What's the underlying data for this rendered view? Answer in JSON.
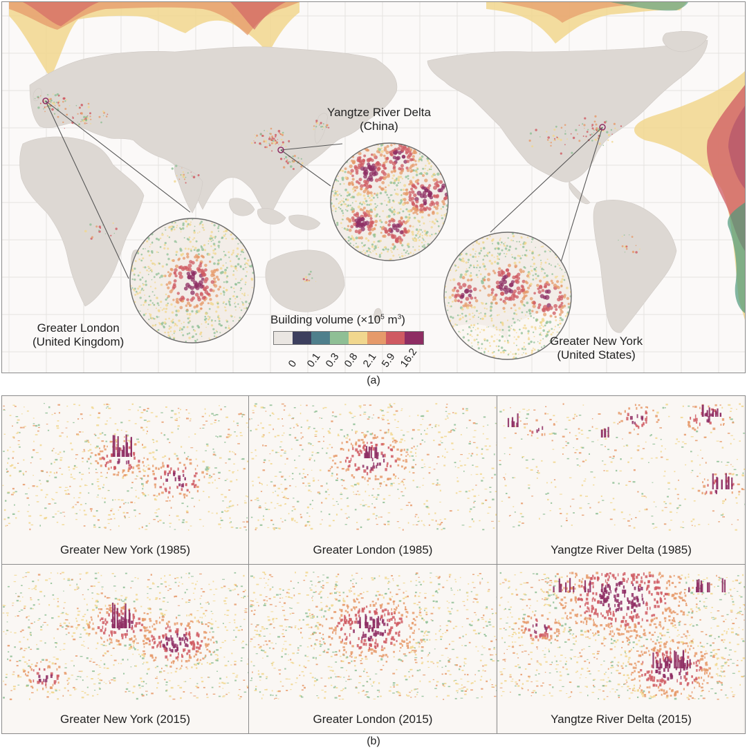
{
  "panel_a": {
    "caption": "(a)",
    "regions": [
      {
        "name": "Yangtze River Delta",
        "country": "(China)"
      },
      {
        "name": "Greater London",
        "country": "(United Kingdom)"
      },
      {
        "name": "Greater New York",
        "country": "(United States)"
      }
    ],
    "legend": {
      "title": "Building volume (×10",
      "title_exp": "5",
      "title_unit": " m",
      "title_unit_exp": "3",
      "title_close": ")",
      "ticks": [
        "0",
        "0.1",
        "0.3",
        "0.8",
        "2.1",
        "5.9",
        "16.2"
      ],
      "colors": [
        "#eae6e2",
        "#3d3f5e",
        "#4f7f8c",
        "#8fbf95",
        "#f1d78e",
        "#e69a6a",
        "#cf5a62",
        "#8e2d63"
      ]
    }
  },
  "panel_b": {
    "caption": "(b)",
    "tiles": [
      {
        "label": "Greater New York (1985)"
      },
      {
        "label": "Greater London (1985)"
      },
      {
        "label": "Yangtze River Delta (1985)"
      },
      {
        "label": "Greater New York (2015)"
      },
      {
        "label": "Greater London (2015)"
      },
      {
        "label": "Yangtze River Delta (2015)"
      }
    ]
  },
  "colors": {
    "land": "#ddd8d3",
    "ocean": "#fbf9f8",
    "grid": "#e2e2e2",
    "accent_dark": "#8e2d63",
    "accent_red": "#cf5a62",
    "accent_orange": "#e69a6a",
    "accent_yellow": "#f1d78e",
    "accent_green": "#8fbf95"
  }
}
